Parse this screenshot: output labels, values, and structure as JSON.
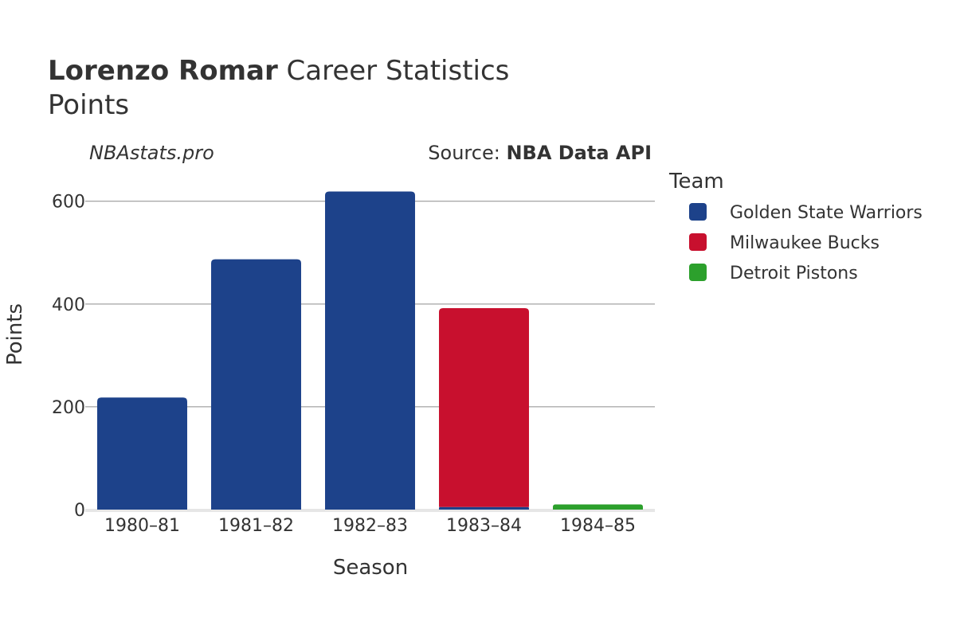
{
  "header": {
    "title_bold": "Lorenzo Romar",
    "title_rest": " Career Statistics",
    "subtitle": "Points"
  },
  "watermark": "NBAstats.pro",
  "source": {
    "prefix": "Source: ",
    "name": "NBA Data API"
  },
  "legend": {
    "title": "Team"
  },
  "chart_data": {
    "type": "bar",
    "stacked": true,
    "categories": [
      "1980–81",
      "1981–82",
      "1982–83",
      "1983–84",
      "1984–85"
    ],
    "series": [
      {
        "name": "Golden State Warriors",
        "color": "#1d428a",
        "values": [
          218,
          487,
          619,
          5,
          0
        ]
      },
      {
        "name": "Milwaukee Bucks",
        "color": "#c8102e",
        "values": [
          0,
          0,
          0,
          387,
          0
        ]
      },
      {
        "name": "Detroit Pistons",
        "color": "#2ca02c",
        "values": [
          0,
          0,
          0,
          0,
          10
        ]
      }
    ],
    "xlabel": "Season",
    "ylabel": "Points",
    "ylim": [
      0,
      660
    ],
    "yticks": [
      0,
      200,
      400,
      600
    ],
    "grid": true,
    "legend_position": "right"
  }
}
